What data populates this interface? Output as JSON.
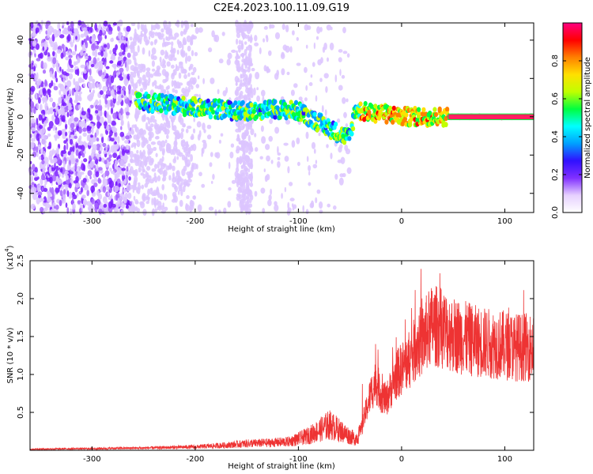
{
  "title": "C2E4.2023.100.11.09.G19",
  "chart_data": [
    {
      "type": "heatmap",
      "xlabel": "Height of straight line (km)",
      "ylabel": "Frequency (Hz)",
      "xlim": [
        -360,
        128
      ],
      "ylim": [
        -50,
        49
      ],
      "xticks": [
        -300,
        -200,
        -100,
        0,
        100
      ],
      "yticks": [
        -40,
        -20,
        0,
        20,
        40
      ],
      "colorbar": {
        "label": "Normalized spectral amplitude",
        "range": [
          0.0,
          1.0
        ],
        "ticks": [
          0.0,
          0.2,
          0.4,
          0.6,
          0.8
        ],
        "colormap": [
          "#ffffff",
          "#e6d0ff",
          "#8030ff",
          "#3010ff",
          "#00a0ff",
          "#00ffff",
          "#00ff40",
          "#c0ff00",
          "#ffe000",
          "#ff8000",
          "#ff0000",
          "#ff0080"
        ]
      },
      "ridge": {
        "x": [
          -257,
          -240,
          -220,
          -200,
          -180,
          -160,
          -140,
          -120,
          -100,
          -90,
          -80,
          -70,
          -60,
          -50,
          -45,
          -40,
          -30,
          -20,
          -10,
          0,
          10,
          20,
          30,
          40,
          60,
          80,
          100,
          128
        ],
        "y": [
          8,
          7,
          6,
          5,
          4,
          3,
          3,
          4,
          3,
          0,
          -3,
          -6,
          -9,
          -11,
          4,
          3,
          2,
          2,
          1,
          0,
          0,
          0,
          0,
          0,
          0,
          0,
          0,
          0
        ]
      }
    },
    {
      "type": "line",
      "xlabel": "Height of straight line (km)",
      "ylabel": "SNR (10 * v/v)",
      "yscale_label": "(x10",
      "yscale_exp": "4",
      "yscale_close": ")",
      "xlim": [
        -360,
        128
      ],
      "ylim": [
        0,
        25000
      ],
      "xticks": [
        -300,
        -200,
        -100,
        0,
        100
      ],
      "ytick_values": [
        5000,
        10000,
        15000,
        20000,
        25000
      ],
      "ytick_labels": [
        "0.5",
        "1.0",
        "1.5",
        "2.0",
        "2.5"
      ],
      "color": "#ee3333",
      "envelope": {
        "x": [
          -360,
          -300,
          -250,
          -200,
          -170,
          -150,
          -130,
          -110,
          -100,
          -90,
          -80,
          -70,
          -60,
          -50,
          -45,
          -40,
          -35,
          -30,
          -25,
          -20,
          -15,
          -10,
          -5,
          0,
          5,
          10,
          15,
          20,
          25,
          30,
          40,
          50,
          60,
          70,
          80,
          90,
          100,
          110,
          128
        ],
        "y": [
          200,
          300,
          400,
          600,
          900,
          1200,
          1300,
          1500,
          2000,
          2600,
          3500,
          4500,
          3500,
          2500,
          2000,
          3000,
          6000,
          9000,
          11000,
          9000,
          8000,
          10000,
          12000,
          13000,
          14000,
          15000,
          17000,
          17500,
          19000,
          20000,
          19500,
          18500,
          18000,
          17500,
          17200,
          17000,
          16800,
          16500,
          16500
        ]
      }
    }
  ]
}
